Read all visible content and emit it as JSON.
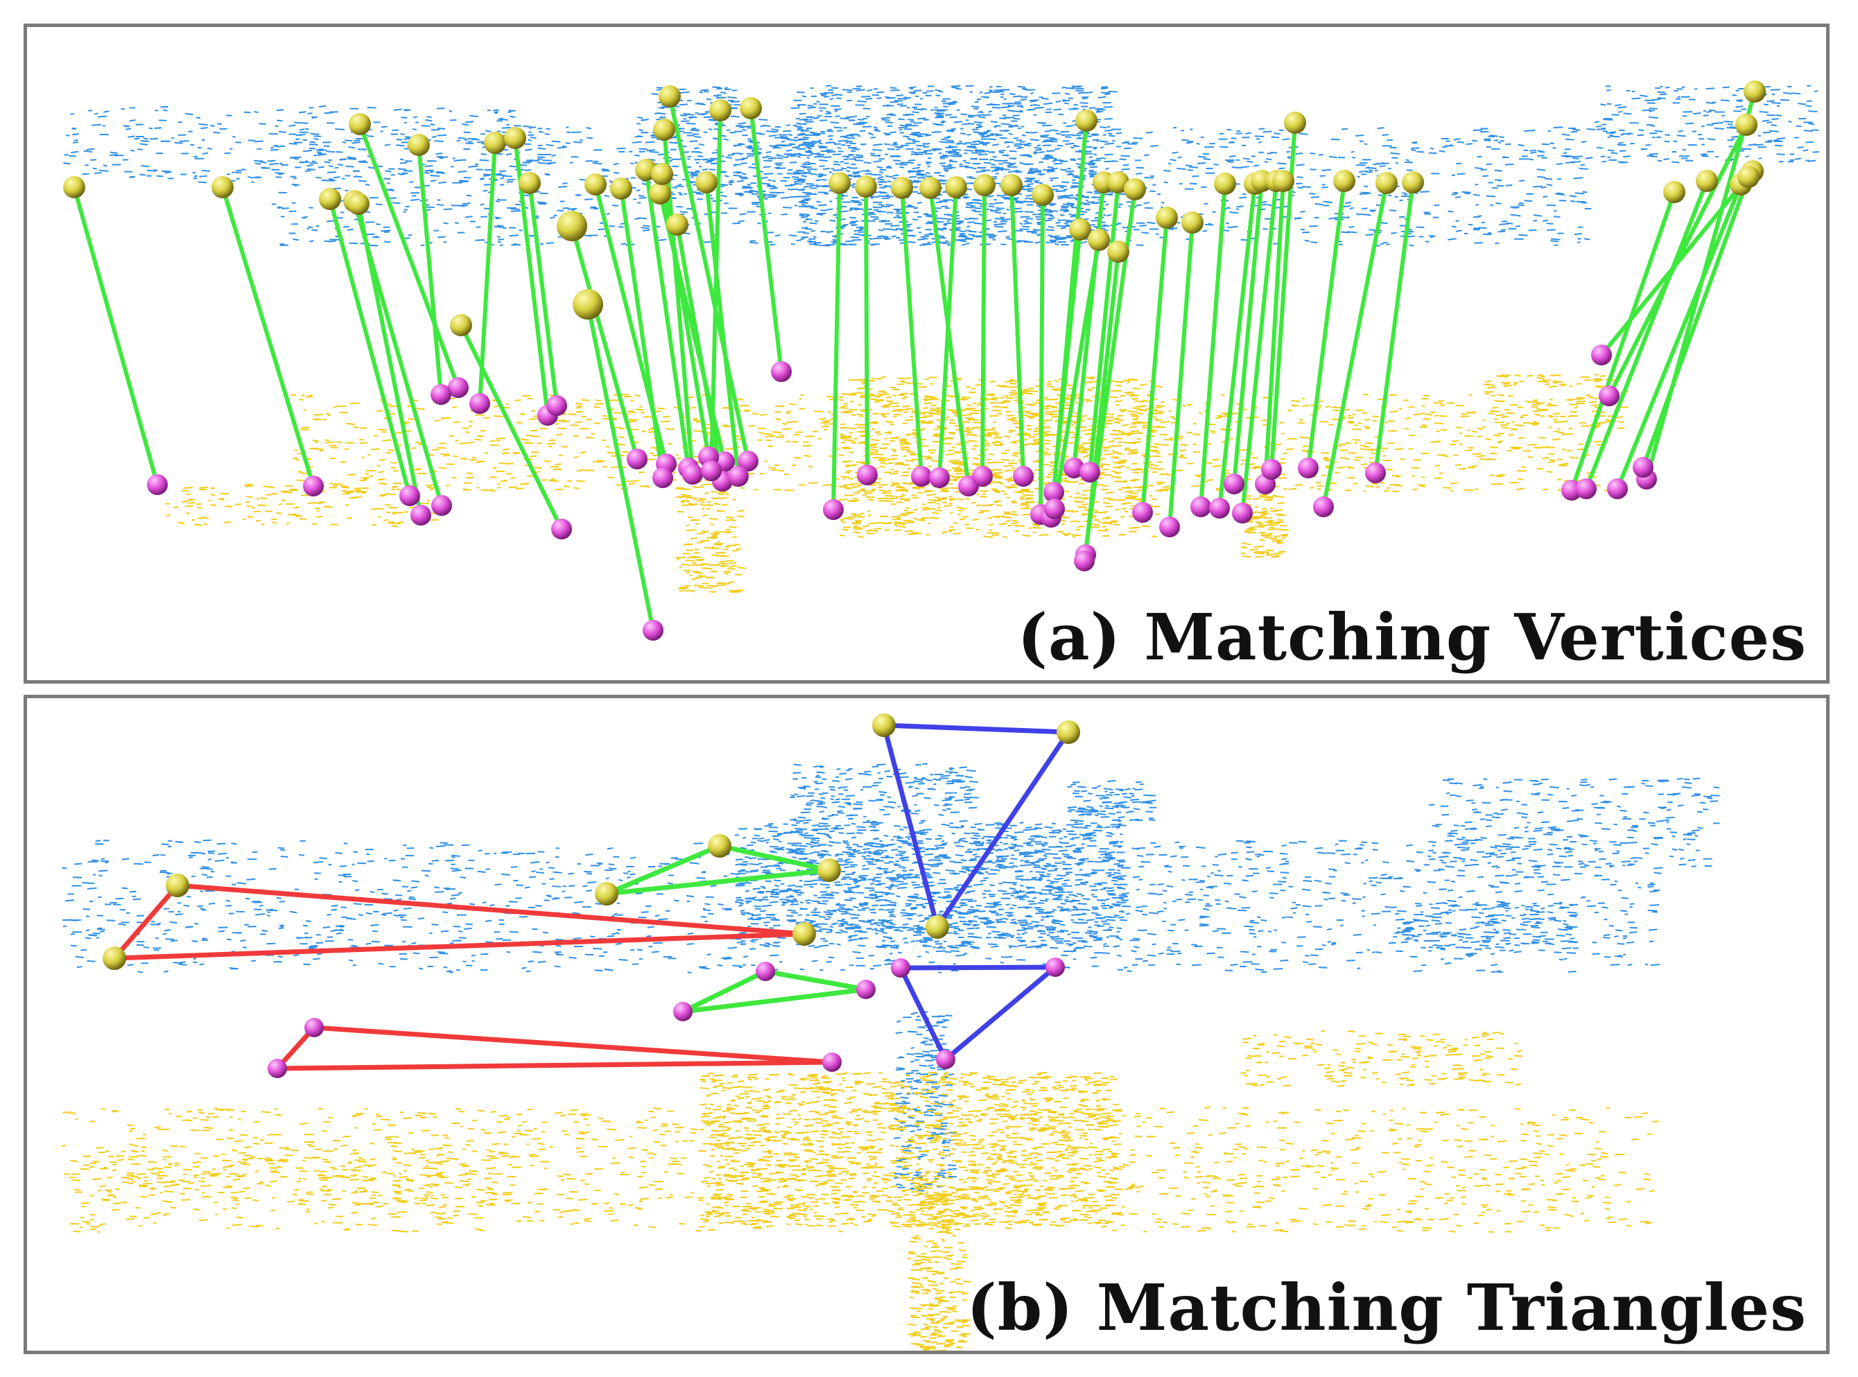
{
  "colors": {
    "source_cloud": "#2f8fe6",
    "target_cloud": "#f2cc1a",
    "source_vertex": "#d8d040",
    "target_vertex": "#e050d8",
    "match_line": "#3ee83e",
    "triangle_red": "#f03a3a",
    "triangle_green": "#3ee83e",
    "triangle_blue": "#4040e8",
    "frame": "#7a7a7a"
  },
  "panels": {
    "a": {
      "caption": "(a) Matching Vertices"
    },
    "b": {
      "caption": "(b) Matching Triangles"
    }
  }
}
